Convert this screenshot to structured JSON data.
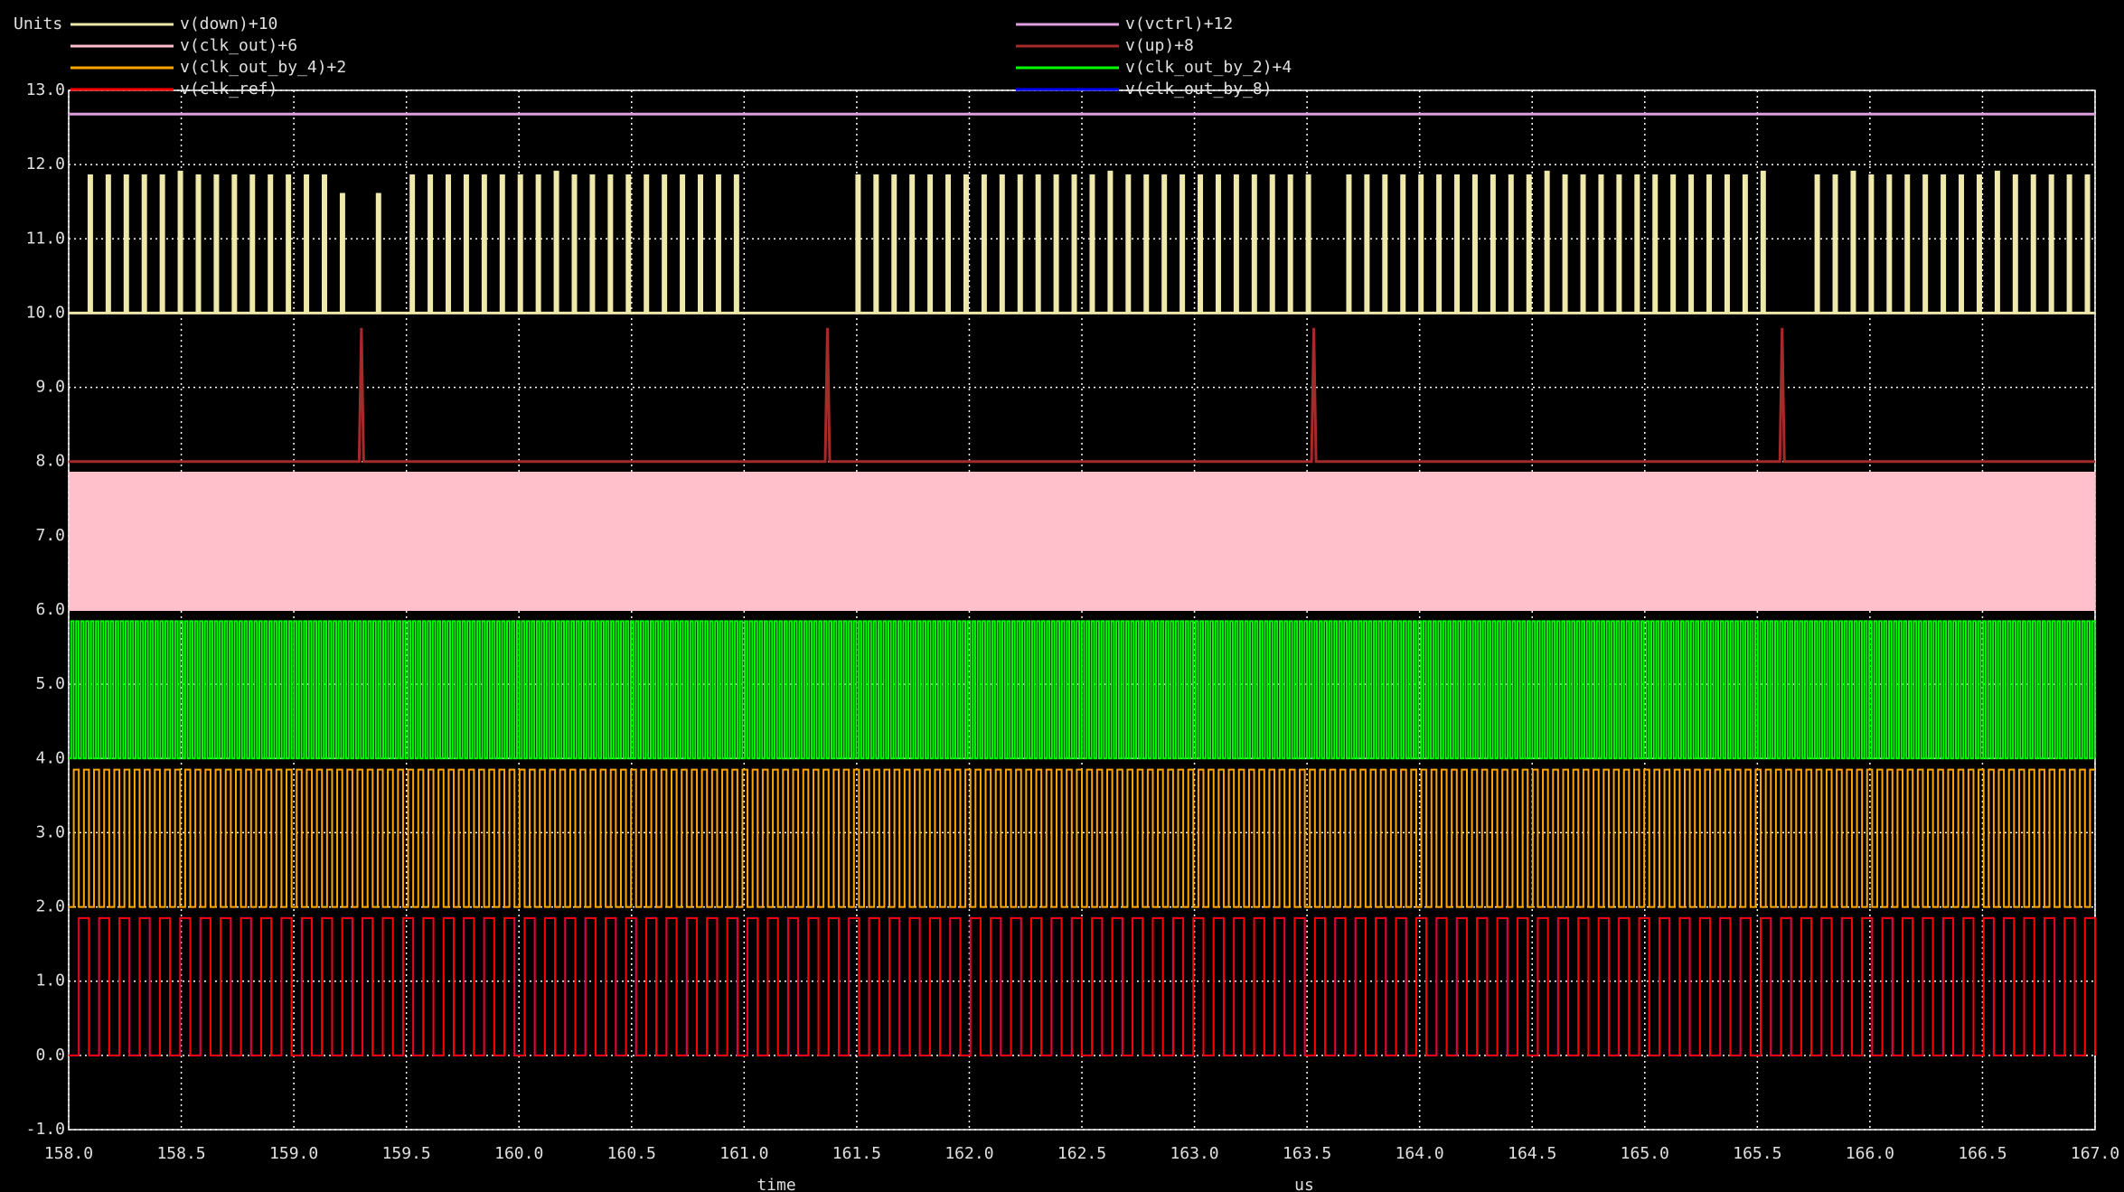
{
  "chart_data": {
    "type": "line",
    "y_unit_label": "Units",
    "xlabel": "time",
    "xunit": "us",
    "xlim": [
      158,
      167
    ],
    "ylim": [
      -1,
      13
    ],
    "xticks": [
      {
        "value": 158,
        "label": "158.0"
      },
      {
        "value": 158.5,
        "label": "158.5"
      },
      {
        "value": 159,
        "label": "159.0"
      },
      {
        "value": 159.5,
        "label": "159.5"
      },
      {
        "value": 160,
        "label": "160.0"
      },
      {
        "value": 160.5,
        "label": "160.5"
      },
      {
        "value": 161,
        "label": "161.0"
      },
      {
        "value": 161.5,
        "label": "161.5"
      },
      {
        "value": 162,
        "label": "162.0"
      },
      {
        "value": 162.5,
        "label": "162.5"
      },
      {
        "value": 163,
        "label": "163.0"
      },
      {
        "value": 163.5,
        "label": "163.5"
      },
      {
        "value": 164,
        "label": "164.0"
      },
      {
        "value": 164.5,
        "label": "164.5"
      },
      {
        "value": 165,
        "label": "165.0"
      },
      {
        "value": 165.5,
        "label": "165.5"
      },
      {
        "value": 166,
        "label": "166.0"
      },
      {
        "value": 166.5,
        "label": "166.5"
      },
      {
        "value": 167,
        "label": "167.0"
      }
    ],
    "yticks": [
      {
        "value": -1,
        "label": "-1.0"
      },
      {
        "value": 0,
        "label": "0.0"
      },
      {
        "value": 1,
        "label": "1.0"
      },
      {
        "value": 2,
        "label": "2.0"
      },
      {
        "value": 3,
        "label": "3.0"
      },
      {
        "value": 4,
        "label": "4.0"
      },
      {
        "value": 5,
        "label": "5.0"
      },
      {
        "value": 6,
        "label": "6.0"
      },
      {
        "value": 7,
        "label": "7.0"
      },
      {
        "value": 8,
        "label": "8.0"
      },
      {
        "value": 9,
        "label": "9.0"
      },
      {
        "value": 10,
        "label": "10.0"
      },
      {
        "value": 11,
        "label": "11.0"
      },
      {
        "value": 12,
        "label": "12.0"
      },
      {
        "value": 13,
        "label": "13.0"
      }
    ],
    "grid": true,
    "series": [
      {
        "name": "v(down)+10",
        "color": "#eee8aa",
        "kind": "pulses",
        "base": 10,
        "pulse_width": 0.012,
        "x": [
          158.09,
          158.17,
          158.25,
          158.33,
          158.41,
          158.49,
          158.57,
          158.65,
          158.73,
          158.81,
          158.89,
          158.97,
          159.05,
          159.13,
          159.21,
          159.37,
          159.52,
          159.6,
          159.68,
          159.76,
          159.84,
          159.92,
          160.0,
          160.08,
          160.16,
          160.24,
          160.32,
          160.4,
          160.48,
          160.56,
          160.64,
          160.72,
          160.8,
          160.88,
          160.96,
          161.5,
          161.58,
          161.66,
          161.74,
          161.82,
          161.9,
          161.98,
          162.06,
          162.14,
          162.22,
          162.3,
          162.38,
          162.46,
          162.54,
          162.62,
          162.7,
          162.78,
          162.86,
          162.94,
          163.02,
          163.1,
          163.18,
          163.26,
          163.34,
          163.42,
          163.5,
          163.68,
          163.76,
          163.84,
          163.92,
          164.0,
          164.08,
          164.16,
          164.24,
          164.32,
          164.4,
          164.48,
          164.56,
          164.64,
          164.72,
          164.8,
          164.88,
          164.96,
          165.04,
          165.12,
          165.2,
          165.28,
          165.36,
          165.44,
          165.52,
          165.76,
          165.84,
          165.92,
          166.0,
          166.08,
          166.16,
          166.24,
          166.32,
          166.4,
          166.48,
          166.56,
          166.64,
          166.72,
          166.8,
          166.88,
          166.96
        ],
        "values": [
          11.85,
          11.85,
          11.85,
          11.85,
          11.85,
          11.9,
          11.85,
          11.85,
          11.85,
          11.85,
          11.85,
          11.85,
          11.85,
          11.85,
          11.6,
          11.6,
          11.85,
          11.85,
          11.85,
          11.85,
          11.85,
          11.85,
          11.85,
          11.85,
          11.9,
          11.85,
          11.85,
          11.85,
          11.85,
          11.85,
          11.85,
          11.85,
          11.85,
          11.85,
          11.85,
          11.85,
          11.85,
          11.85,
          11.85,
          11.85,
          11.85,
          11.85,
          11.85,
          11.85,
          11.85,
          11.85,
          11.85,
          11.85,
          11.85,
          11.9,
          11.85,
          11.85,
          11.85,
          11.85,
          11.85,
          11.85,
          11.85,
          11.85,
          11.85,
          11.85,
          11.85,
          11.85,
          11.85,
          11.85,
          11.85,
          11.85,
          11.85,
          11.85,
          11.85,
          11.85,
          11.85,
          11.85,
          11.9,
          11.85,
          11.85,
          11.85,
          11.85,
          11.85,
          11.85,
          11.85,
          11.85,
          11.85,
          11.85,
          11.85,
          11.9,
          11.85,
          11.85,
          11.9,
          11.85,
          11.85,
          11.85,
          11.85,
          11.85,
          11.85,
          11.85,
          11.9,
          11.85,
          11.85,
          11.85,
          11.85,
          11.85
        ]
      },
      {
        "name": "v(vctrl)+12",
        "color": "#dda0dd",
        "kind": "line",
        "x": [
          158,
          167
        ],
        "values": [
          12.68,
          12.68
        ]
      },
      {
        "name": "v(clk_out)+6",
        "color": "#ffc0cb",
        "kind": "square",
        "low": 6.0,
        "high": 7.85,
        "period": 0.011
      },
      {
        "name": "v(up)+8",
        "color": "#a52a2a",
        "kind": "line",
        "x": [
          158,
          159.29,
          159.3,
          159.31,
          161.36,
          161.37,
          161.38,
          163.52,
          163.53,
          163.54,
          165.6,
          165.61,
          165.62,
          167
        ],
        "values": [
          8,
          8,
          9.8,
          8,
          8,
          9.8,
          8,
          8,
          9.8,
          8,
          8,
          9.8,
          8,
          8
        ]
      },
      {
        "name": "v(clk_out_by_4)+2",
        "color": "#ffa500",
        "kind": "square",
        "low": 2.0,
        "high": 3.85,
        "period": 0.045
      },
      {
        "name": "v(clk_out_by_2)+4",
        "color": "#00ff00",
        "kind": "square",
        "low": 4.0,
        "high": 5.85,
        "period": 0.022
      },
      {
        "name": "v(clk_ref)",
        "color": "#ff0000",
        "kind": "square",
        "low": 0.0,
        "high": 1.85,
        "period": 0.09
      },
      {
        "name": "v(clk_out_by_8)",
        "color": "#0000ff",
        "kind": "square",
        "low": 0.0,
        "high": 1.85,
        "period": 0.09
      }
    ]
  }
}
